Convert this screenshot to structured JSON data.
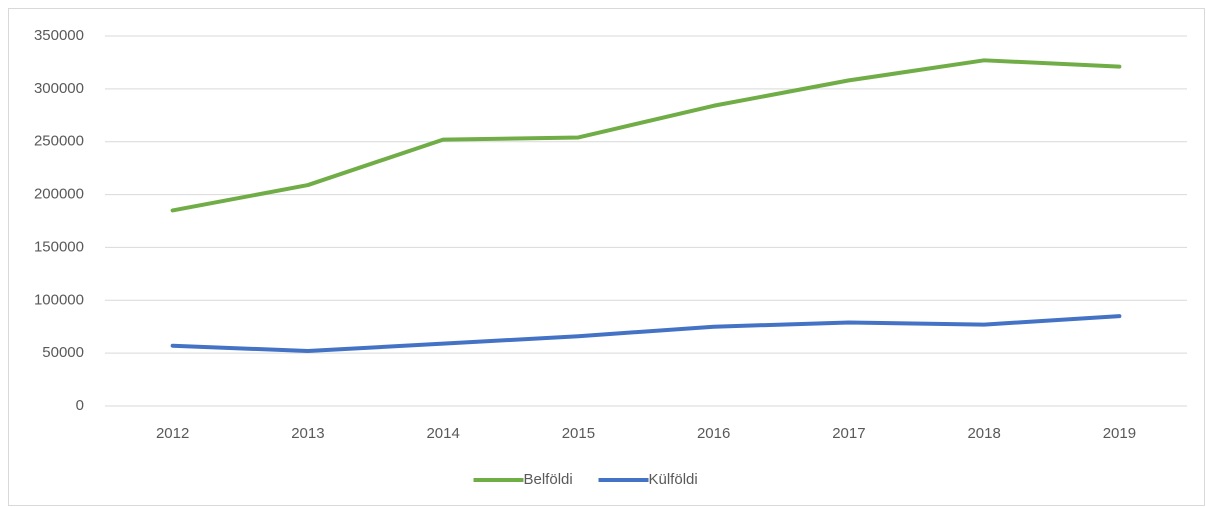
{
  "chart_data": {
    "type": "line",
    "categories": [
      "2012",
      "2013",
      "2014",
      "2015",
      "2016",
      "2017",
      "2018",
      "2019"
    ],
    "series": [
      {
        "name": "Belföldi",
        "color": "#70ad47",
        "values": [
          185000,
          209000,
          252000,
          254000,
          284000,
          308000,
          327000,
          321000
        ]
      },
      {
        "name": "Külföldi",
        "color": "#4472c4",
        "values": [
          57000,
          52000,
          59000,
          66000,
          75000,
          79000,
          77000,
          85000
        ]
      }
    ],
    "ylim": [
      0,
      350000
    ],
    "yticks": [
      0,
      50000,
      100000,
      150000,
      200000,
      250000,
      300000,
      350000
    ],
    "grid": true,
    "legend": "bottom"
  }
}
